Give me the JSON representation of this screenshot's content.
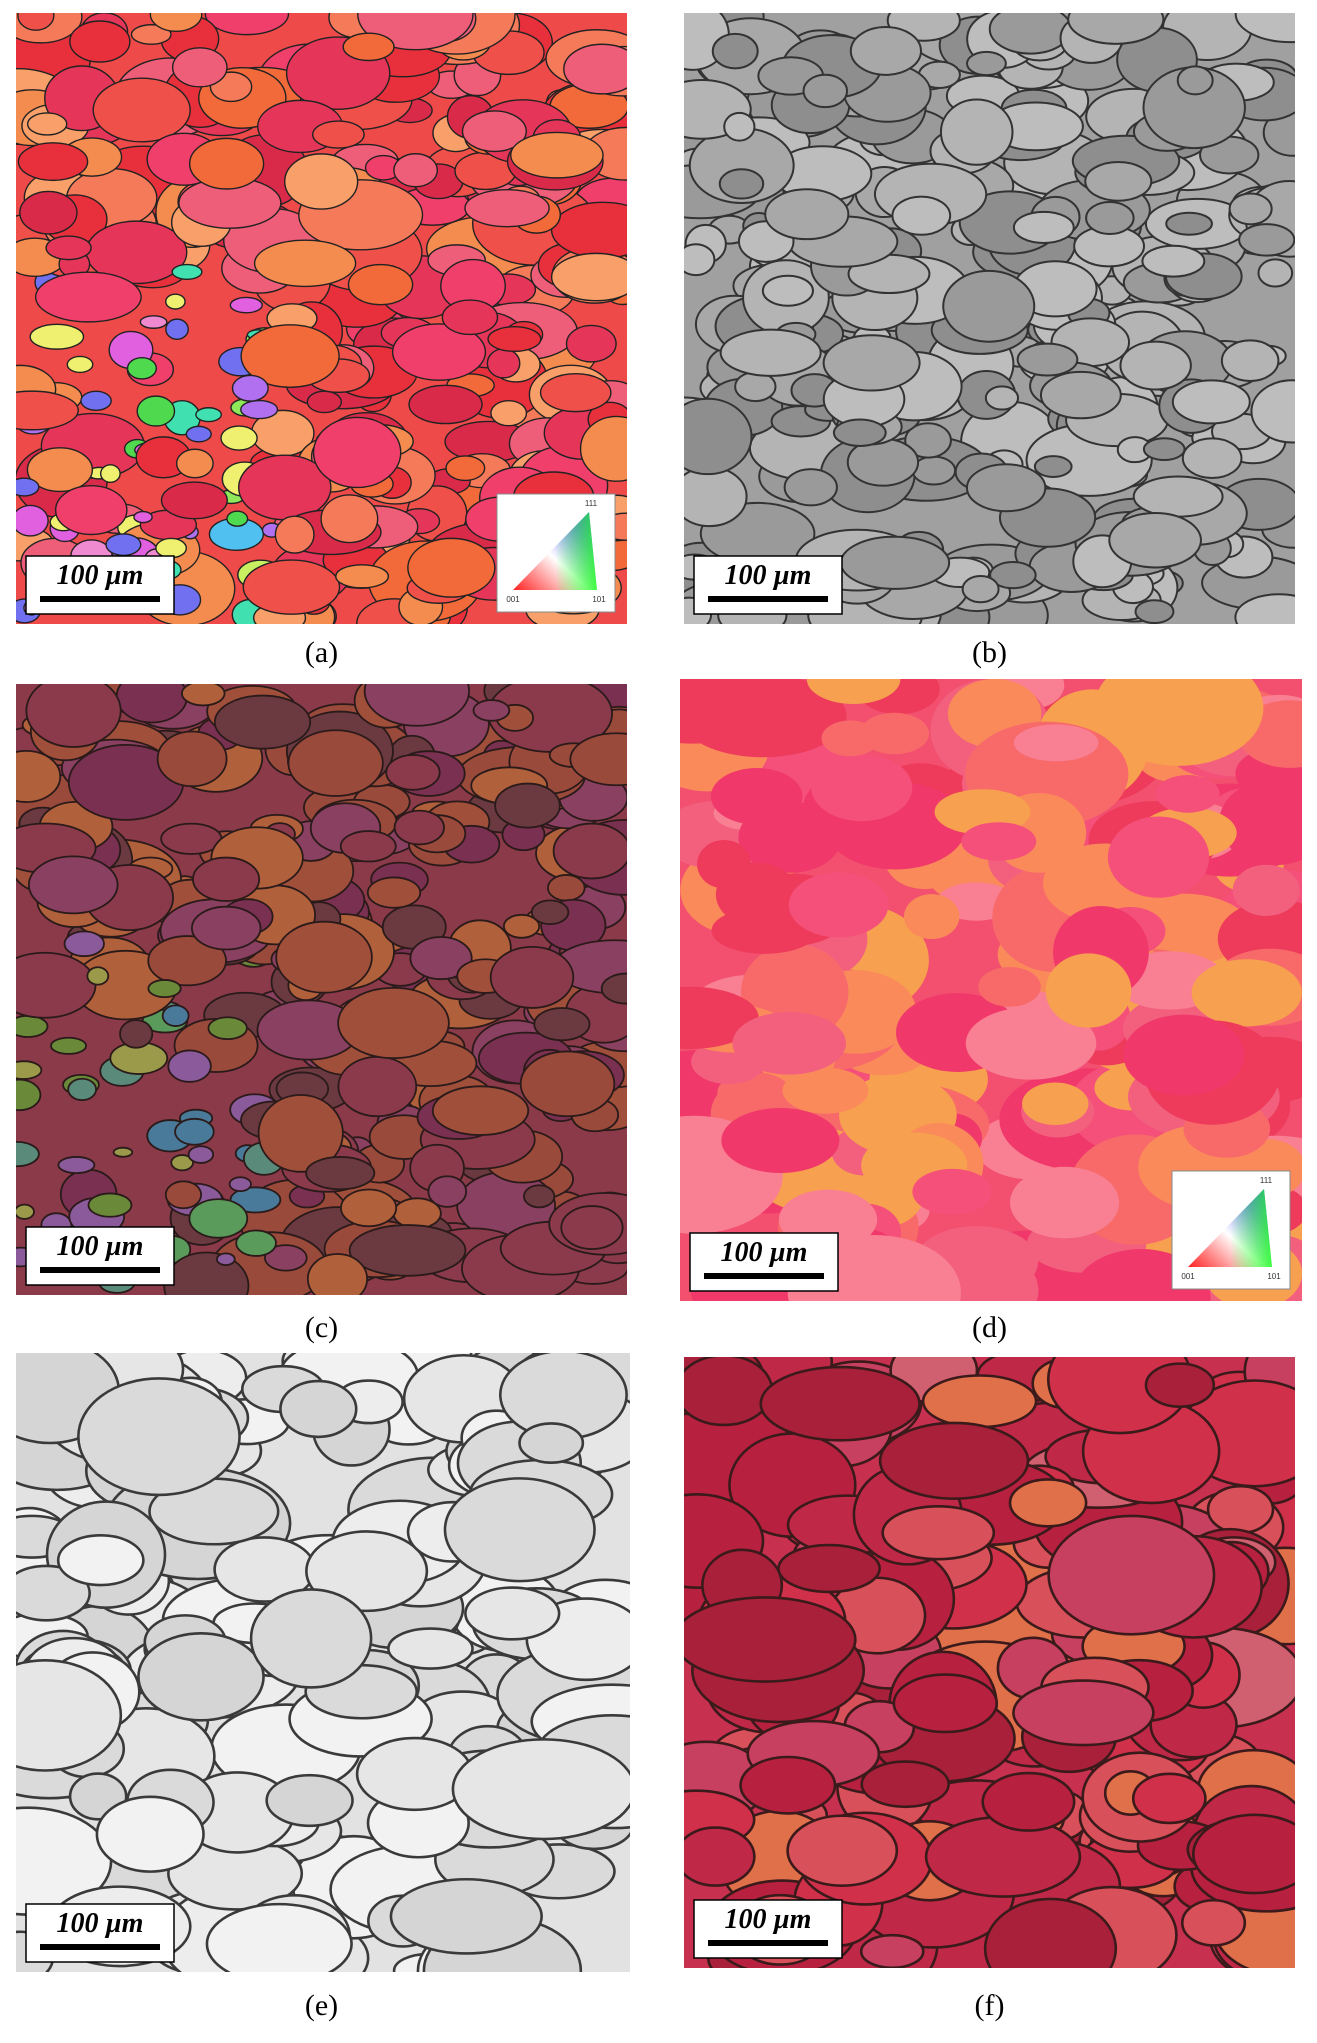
{
  "panels": [
    {
      "label": "(a)",
      "scale_bar": "100 µm",
      "ipf_key": {
        "top": "111",
        "left": "001",
        "right": "101"
      }
    },
    {
      "label": "(b)",
      "scale_bar": "100 µm"
    },
    {
      "label": "(c)",
      "scale_bar": "100 µm"
    },
    {
      "label": "(d)",
      "scale_bar": "100 µm",
      "ipf_key": {
        "top": "111",
        "left": "001",
        "right": "101"
      }
    },
    {
      "label": "(e)",
      "scale_bar": "100 µm"
    },
    {
      "label": "(f)",
      "scale_bar": "100 µm"
    }
  ]
}
